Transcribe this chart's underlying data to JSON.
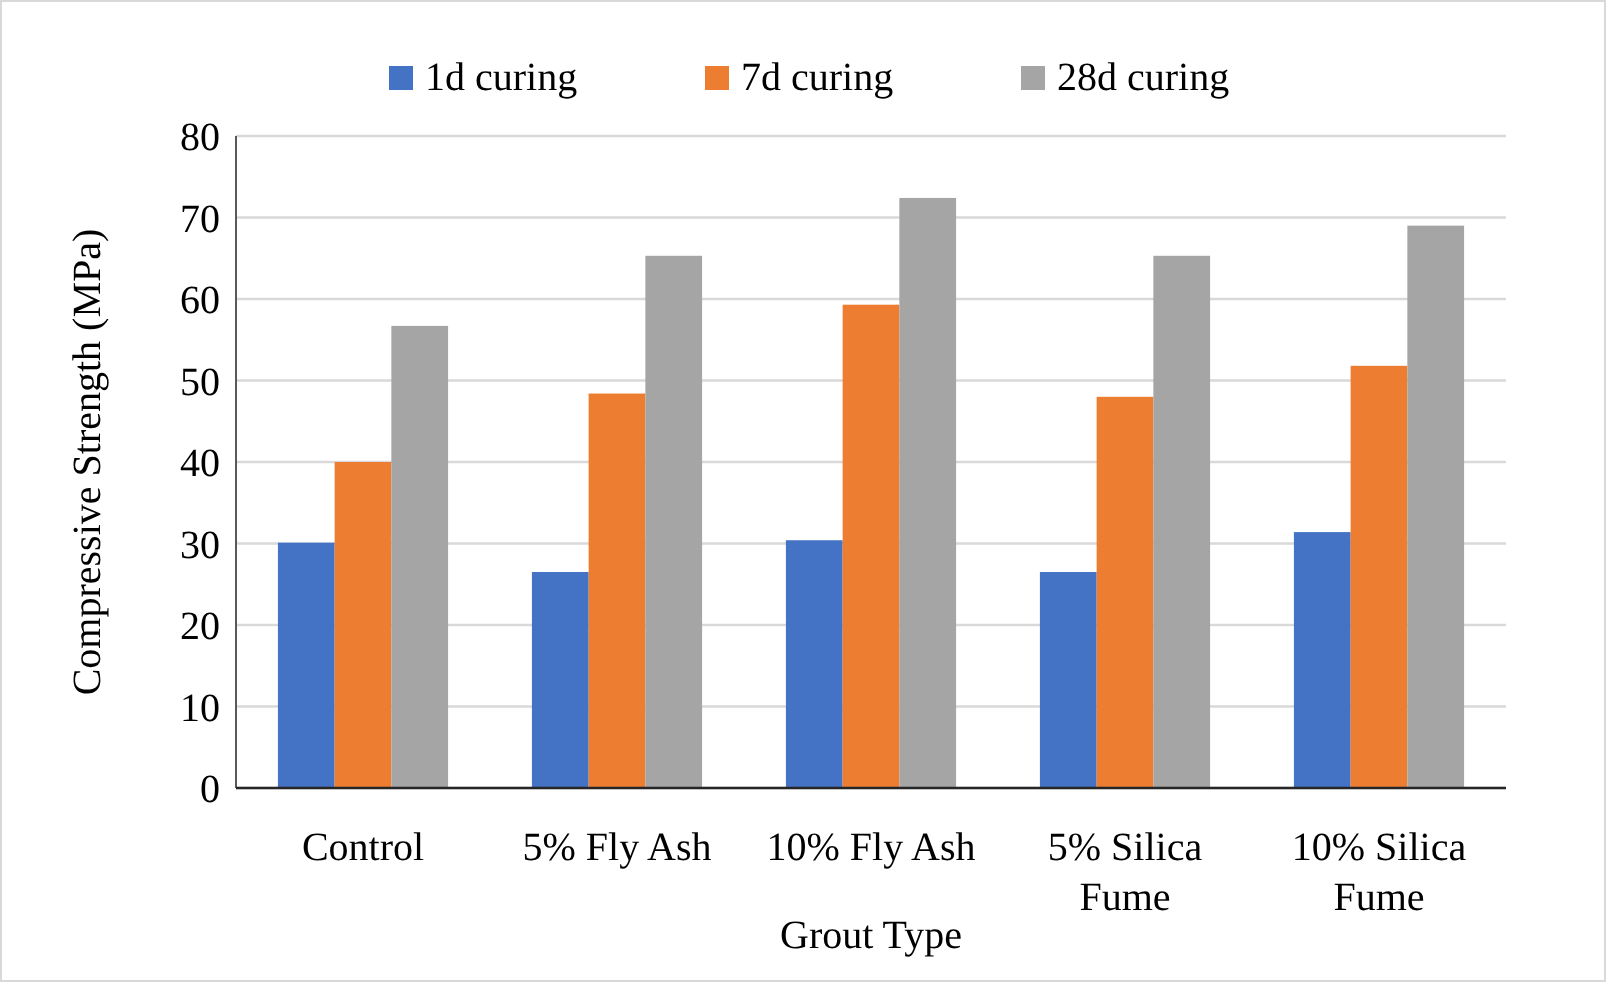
{
  "chart_data": {
    "type": "bar",
    "xlabel": "Grout Type",
    "ylabel": "Compressive Strength (MPa)",
    "categories": [
      "Control",
      "5% Fly Ash",
      "10% Fly Ash",
      "5% Silica Fume",
      "10% Silica Fume"
    ],
    "series": [
      {
        "name": "1d curing",
        "color": "#4472c4",
        "values": [
          30.1,
          26.5,
          30.4,
          26.5,
          31.4
        ]
      },
      {
        "name": "7d curing",
        "color": "#ed7d31",
        "values": [
          40,
          48.4,
          59.3,
          48,
          51.8
        ]
      },
      {
        "name": "28d curing",
        "color": "#a5a5a5",
        "values": [
          56.7,
          65.3,
          72.4,
          65.3,
          69
        ]
      }
    ],
    "ylim": [
      0,
      80
    ],
    "yticks": [
      0,
      10,
      20,
      30,
      40,
      50,
      60,
      70,
      80
    ],
    "grid": "y",
    "legend": "top"
  }
}
